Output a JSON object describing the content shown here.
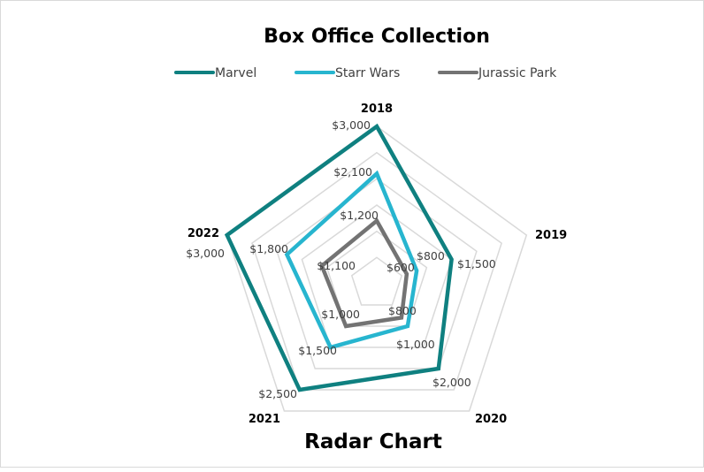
{
  "chart_data": {
    "type": "radar",
    "title": "Box Office Collection",
    "subtitle": "Radar Chart",
    "categories": [
      "2018",
      "2019",
      "2020",
      "2021",
      "2022"
    ],
    "series": [
      {
        "name": "Marvel",
        "color": "#0F8080",
        "values": [
          3000,
          1500,
          2000,
          2500,
          3000
        ]
      },
      {
        "name": "Starr Wars",
        "color": "#27B5CF",
        "values": [
          2100,
          800,
          1000,
          1500,
          1800
        ]
      },
      {
        "name": "Jurassic Park",
        "color": "#737373",
        "values": [
          1200,
          600,
          800,
          1000,
          1100
        ]
      }
    ],
    "value_format": "$#,##0",
    "rlim": [
      0,
      3000
    ],
    "grid_step": 500,
    "grid": true,
    "legend_position": "top"
  },
  "labels": {
    "title": "Box Office Collection",
    "subtitle": "Radar Chart",
    "legend": [
      "Marvel",
      "Starr Wars",
      "Jurassic Park"
    ],
    "axes": [
      "2018",
      "2019",
      "2020",
      "2021",
      "2022"
    ],
    "data": {
      "marvel": [
        "$3,000",
        "$1,500",
        "$2,000",
        "$2,500",
        "$3,000"
      ],
      "starr_wars": [
        "$2,100",
        "$800",
        "$1,000",
        "$1,500",
        "$1,800"
      ],
      "jurassic_park": [
        "$1,200",
        "$600",
        "$800",
        "$1,000",
        "$1,100"
      ]
    }
  }
}
